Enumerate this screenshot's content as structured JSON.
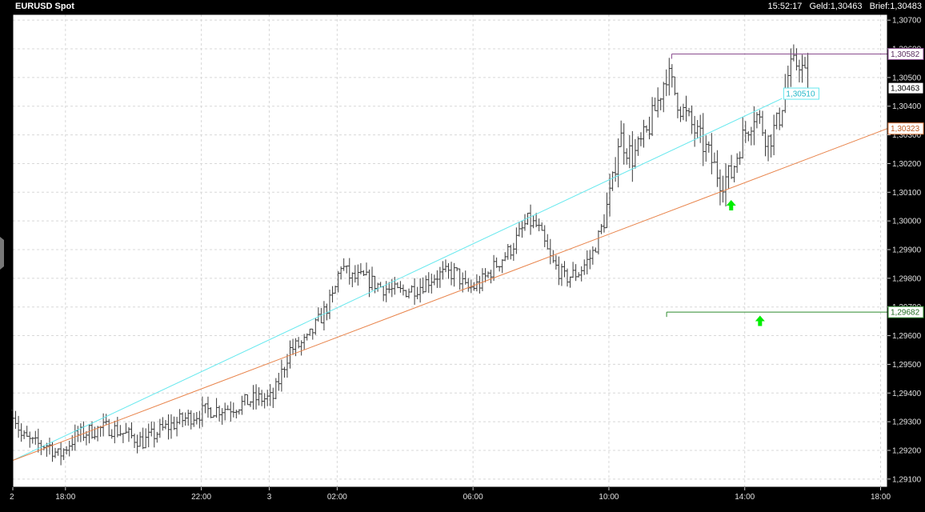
{
  "header": {
    "title": "EURUSD Spot",
    "time": "15:52:17",
    "bid": "Geld:1,30463",
    "ask": "Brief:1,30483"
  },
  "chart_data": {
    "type": "candlestick",
    "title": "EURUSD Spot",
    "xlabel": "",
    "ylabel": "",
    "grid": true,
    "ylim": [
      1.2908,
      1.3072
    ],
    "x_ticks": [
      {
        "label": "2",
        "t": -1.55
      },
      {
        "label": "18:00",
        "t": 0
      },
      {
        "label": "22:00",
        "t": 4
      },
      {
        "label": "3",
        "t": 6
      },
      {
        "label": "02:00",
        "t": 8
      },
      {
        "label": "06:00",
        "t": 12
      },
      {
        "label": "10:00",
        "t": 16
      },
      {
        "label": "14:00",
        "t": 20
      },
      {
        "label": "18:00",
        "t": 24
      }
    ],
    "x_range_hours_from_1800": [
      -1.55,
      24.2
    ],
    "y_ticks": [
      "1,29100",
      "1,29200",
      "1,29300",
      "1,29400",
      "1,29500",
      "1,29600",
      "1,29700",
      "1,29800",
      "1,29900",
      "1,30000",
      "1,30100",
      "1,30200",
      "1,30300",
      "1,30400",
      "1,30500",
      "1,30600",
      "1,30700"
    ],
    "y_tick_values": [
      1.291,
      1.292,
      1.293,
      1.294,
      1.295,
      1.296,
      1.297,
      1.298,
      1.299,
      1.3,
      1.301,
      1.302,
      1.303,
      1.304,
      1.305,
      1.306,
      1.307
    ],
    "close_path_anchors": [
      [
        -1.55,
        1.2934
      ],
      [
        -1.3,
        1.2925
      ],
      [
        -0.9,
        1.2922
      ],
      [
        -0.5,
        1.2922
      ],
      [
        -0.2,
        1.2918
      ],
      [
        0.3,
        1.2925
      ],
      [
        0.8,
        1.2927
      ],
      [
        1.3,
        1.2928
      ],
      [
        1.9,
        1.2925
      ],
      [
        2.3,
        1.2923
      ],
      [
        2.8,
        1.2927
      ],
      [
        3.5,
        1.2931
      ],
      [
        4.2,
        1.2934
      ],
      [
        4.9,
        1.2935
      ],
      [
        5.6,
        1.2938
      ],
      [
        6.1,
        1.2938
      ],
      [
        6.6,
        1.2955
      ],
      [
        7.1,
        1.2958
      ],
      [
        7.6,
        1.2968
      ],
      [
        7.9,
        1.2974
      ],
      [
        8.1,
        1.2985
      ],
      [
        8.4,
        1.298
      ],
      [
        8.8,
        1.298
      ],
      [
        9.3,
        1.2977
      ],
      [
        9.8,
        1.2975
      ],
      [
        10.4,
        1.2977
      ],
      [
        10.9,
        1.2981
      ],
      [
        11.5,
        1.2982
      ],
      [
        11.8,
        1.2976
      ],
      [
        12.2,
        1.2978
      ],
      [
        12.7,
        1.2985
      ],
      [
        13.1,
        1.299
      ],
      [
        13.6,
        1.3
      ],
      [
        13.9,
        1.2998
      ],
      [
        14.3,
        1.2986
      ],
      [
        14.7,
        1.298
      ],
      [
        15.1,
        1.2982
      ],
      [
        15.5,
        1.2988
      ],
      [
        15.8,
        1.2998
      ],
      [
        16.1,
        1.3012
      ],
      [
        16.3,
        1.303
      ],
      [
        16.7,
        1.3022
      ],
      [
        17.1,
        1.303
      ],
      [
        17.4,
        1.304
      ],
      [
        17.7,
        1.3052
      ],
      [
        18.1,
        1.304
      ],
      [
        18.5,
        1.3032
      ],
      [
        18.9,
        1.3024
      ],
      [
        19.3,
        1.3014
      ],
      [
        19.6,
        1.3016
      ],
      [
        19.9,
        1.3028
      ],
      [
        20.3,
        1.3038
      ],
      [
        20.7,
        1.3028
      ],
      [
        21.0,
        1.3035
      ],
      [
        21.3,
        1.3052
      ],
      [
        21.6,
        1.3056
      ],
      [
        21.9,
        1.3046
      ]
    ],
    "trend_lines": [
      {
        "name": "cyan-trend-line",
        "color": "#66e8ee",
        "from": [
          -1.55,
          1.29165
        ],
        "to": [
          21.1,
          1.30427
        ],
        "label": "1,30510"
      },
      {
        "name": "orange-trend-line",
        "color": "#e8834a",
        "from": [
          -1.55,
          1.29165
        ],
        "to": [
          24.2,
          1.30322
        ],
        "label": "1,30323"
      }
    ],
    "horizontal_levels": [
      {
        "name": "purple-level-line",
        "value": "1,30582",
        "y": 1.30582,
        "from_t": 17.85,
        "color": "#8a4d8f"
      },
      {
        "name": "green-level-line",
        "value": "1,29682",
        "y": 1.29682,
        "from_t": 17.7,
        "color": "#2e8b2e"
      }
    ],
    "current_price": {
      "value": "1,30463",
      "y": 1.30463
    },
    "signals": [
      {
        "name": "buy-arrow-1",
        "t": 19.6,
        "y": 1.30073,
        "color": "#00ee00"
      },
      {
        "name": "buy-arrow-2",
        "t": 20.45,
        "y": 1.2967,
        "color": "#00ee00"
      }
    ],
    "colors": {
      "plot_bg": "#ffffff",
      "bars": "#3a3a3a",
      "grid": "#d8d8d8",
      "frame": "#000000"
    }
  }
}
